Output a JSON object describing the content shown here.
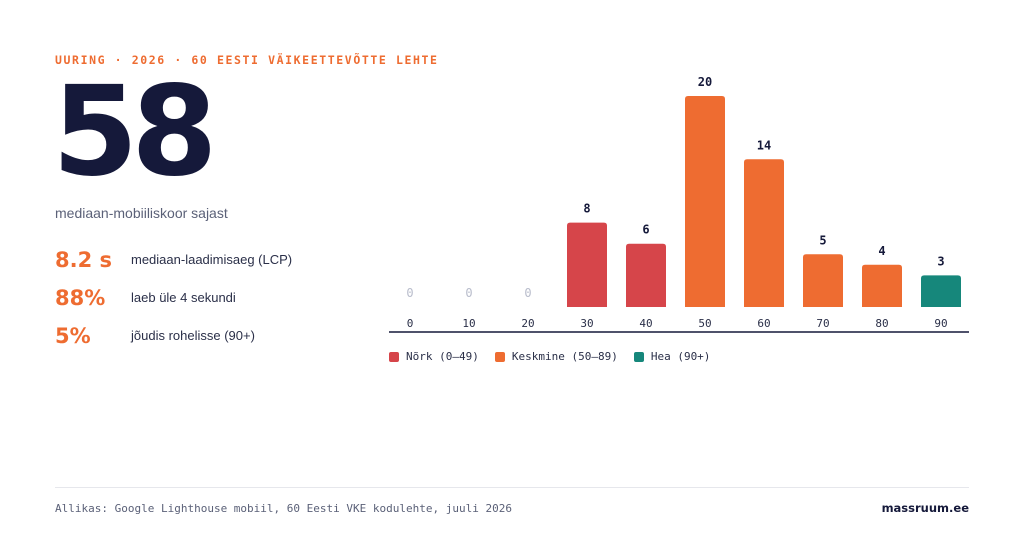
{
  "header": {
    "eyebrow": "UURING · 2026 · 60 EESTI VÄIKEETTEVÕTTE LEHTE",
    "big_number": "58",
    "big_caption": "mediaan-mobiiliskoor sajast"
  },
  "stats": [
    {
      "value": "8.2 s",
      "label": "mediaan-laadimisaeg (LCP)"
    },
    {
      "value": "88%",
      "label": "laeb üle 4 sekundi"
    },
    {
      "value": "5%",
      "label": "jõudis rohelisse (90+)"
    }
  ],
  "colors": {
    "weak": "#d6454a",
    "medium": "#ee6c31",
    "good": "#16877b",
    "text_dark": "#15193a",
    "zero_label": "#b8bccb"
  },
  "chart_data": {
    "type": "bar",
    "categories": [
      "0",
      "10",
      "20",
      "30",
      "40",
      "50",
      "60",
      "70",
      "80",
      "90"
    ],
    "values": [
      0,
      0,
      0,
      8,
      6,
      20,
      14,
      5,
      4,
      3
    ],
    "bar_groups": [
      "weak",
      "weak",
      "weak",
      "weak",
      "weak",
      "medium",
      "medium",
      "medium",
      "medium",
      "good"
    ],
    "ylim": [
      0,
      20
    ],
    "grid": false,
    "legend_position": "bottom-left",
    "legend": [
      {
        "label": "Nõrk (0–49)",
        "group": "weak"
      },
      {
        "label": "Keskmine (50–89)",
        "group": "medium"
      },
      {
        "label": "Hea (90+)",
        "group": "good"
      }
    ]
  },
  "footer": {
    "source": "Allikas: Google Lighthouse mobiil, 60 Eesti VKE kodulehte, juuli 2026",
    "brand": "massruum.ee"
  }
}
